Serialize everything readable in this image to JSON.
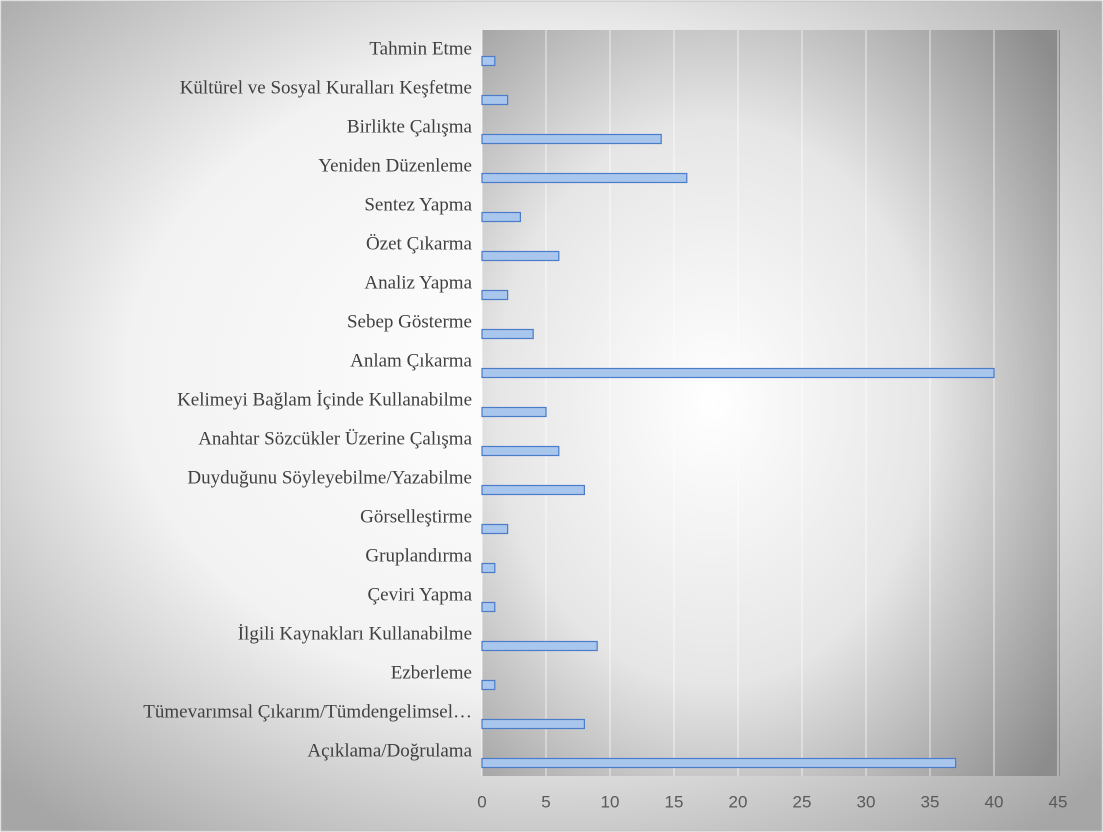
{
  "chart_data": {
    "type": "barh",
    "categories": [
      "Tahmin Etme",
      "Kültürel ve Sosyal Kuralları Keşfetme",
      "Birlikte Çalışma",
      "Yeniden Düzenleme",
      "Sentez Yapma",
      "Özet Çıkarma",
      "Analiz Yapma",
      "Sebep Gösterme",
      "Anlam Çıkarma",
      "Kelimeyi Bağlam İçinde Kullanabilme",
      "Anahtar Sözcükler Üzerine Çalışma",
      "Duyduğunu Söyleyebilme/Yazabilme",
      "Görselleştirme",
      "Gruplandırma",
      "Çeviri Yapma",
      "İlgili Kaynakları Kullanabilme",
      "Ezberleme",
      "Tümevarımsal Çıkarım/Tümdengelimsel…",
      "Açıklama/Doğrulama"
    ],
    "values": [
      1,
      2,
      14,
      16,
      3,
      6,
      2,
      4,
      40,
      5,
      6,
      8,
      2,
      1,
      1,
      9,
      1,
      8,
      37
    ],
    "color": "#a9c6ec",
    "xlim": [
      0,
      45
    ],
    "xticks": [
      0,
      5,
      10,
      15,
      20,
      25,
      30,
      35,
      40,
      45
    ],
    "grid": true
  }
}
